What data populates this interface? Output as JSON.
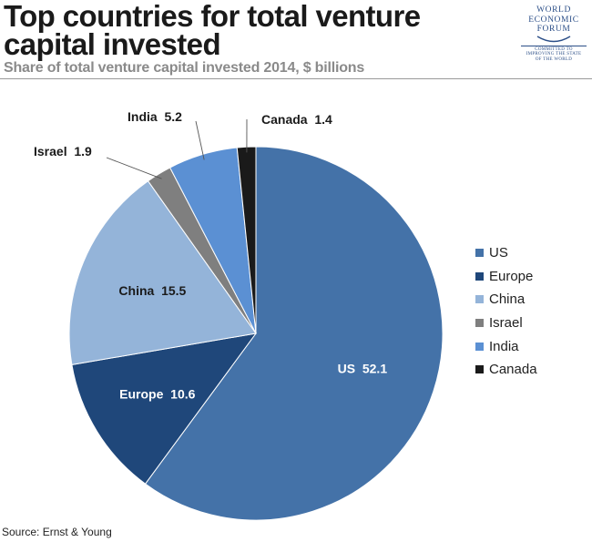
{
  "header": {
    "title": "Top countries for total venture capital invested",
    "subtitle": "Share of total venture capital invested 2014, $ billions"
  },
  "logo": {
    "line1": "WORLD",
    "line2": "ECONOMIC",
    "line3": "FORUM",
    "tagline1": "COMMITTED TO",
    "tagline2": "IMPROVING THE STATE",
    "tagline3": "OF THE WORLD"
  },
  "chart_data": {
    "type": "pie",
    "title": "Top countries for total venture capital invested",
    "subtitle": "Share of total venture capital invested 2014, $ billions",
    "slices": [
      {
        "name": "US",
        "value": 52.1,
        "label": "US  52.1",
        "color": "#4472a8"
      },
      {
        "name": "Europe",
        "value": 10.6,
        "label": "Europe  10.6",
        "color": "#1f477a"
      },
      {
        "name": "China",
        "value": 15.5,
        "label": "China  15.5",
        "color": "#94b4d9"
      },
      {
        "name": "Israel",
        "value": 1.9,
        "label": "Israel  1.9",
        "color": "#7f7f7f"
      },
      {
        "name": "India",
        "value": 5.2,
        "label": "India  5.2",
        "color": "#5b90d3"
      },
      {
        "name": "Canada",
        "value": 1.4,
        "label": "Canada  1.4",
        "color": "#1a1a1a"
      }
    ],
    "legend": "right"
  },
  "footer": {
    "source": "Source: Ernst & Young"
  }
}
